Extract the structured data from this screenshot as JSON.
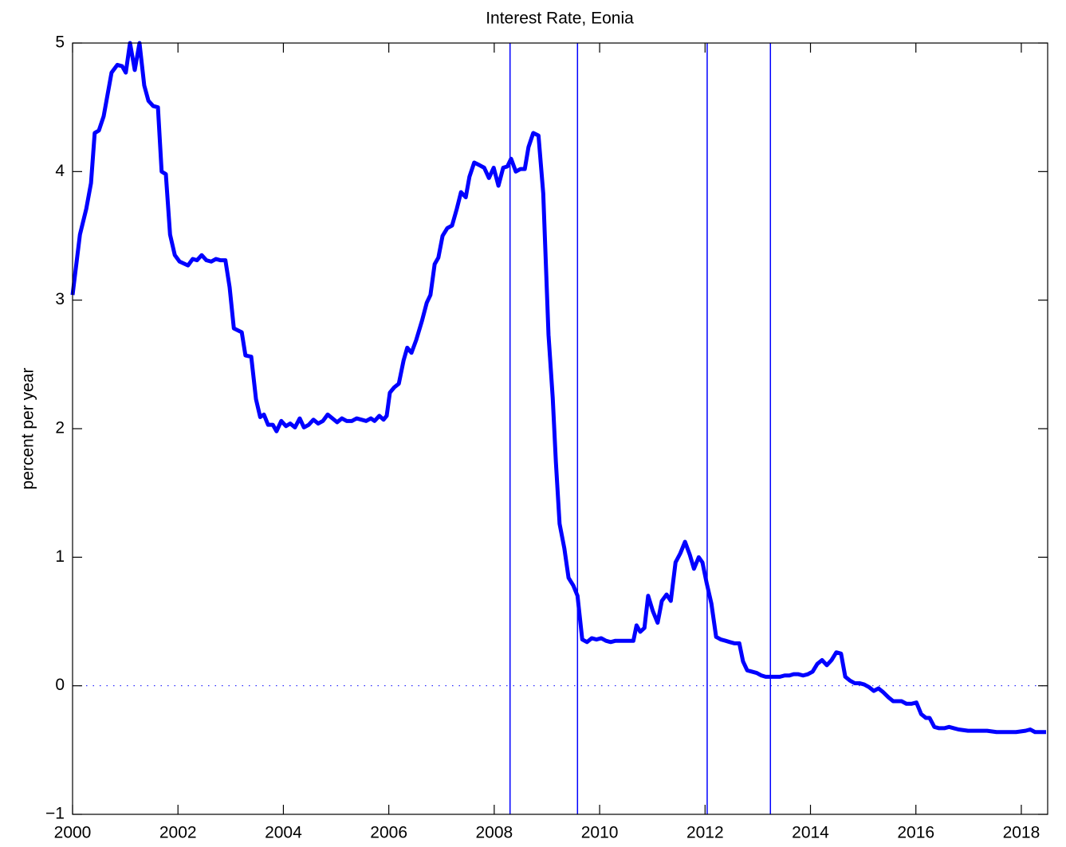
{
  "chart_data": {
    "type": "line",
    "title": "Interest Rate, Eonia",
    "y_label": "percent per year",
    "color": "#0000ff",
    "line_width": 5,
    "x": [
      2000.0,
      2000.14,
      2000.26,
      2000.35,
      2000.42,
      2000.5,
      2000.59,
      2000.74,
      2000.85,
      2000.94,
      2001.01,
      2001.09,
      2001.18,
      2001.27,
      2001.36,
      2001.44,
      2001.53,
      2001.62,
      2001.69,
      2001.77,
      2001.85,
      2001.94,
      2002.03,
      2002.19,
      2002.28,
      2002.36,
      2002.45,
      2002.54,
      2002.63,
      2002.72,
      2002.81,
      2002.9,
      2002.98,
      2003.06,
      2003.21,
      2003.28,
      2003.39,
      2003.48,
      2003.56,
      2003.63,
      2003.71,
      2003.8,
      2003.87,
      2003.96,
      2004.05,
      2004.13,
      2004.22,
      2004.31,
      2004.39,
      2004.48,
      2004.57,
      2004.66,
      2004.75,
      2004.84,
      2004.93,
      2005.02,
      2005.11,
      2005.2,
      2005.3,
      2005.39,
      2005.48,
      2005.57,
      2005.66,
      2005.73,
      2005.82,
      2005.9,
      2005.96,
      2006.02,
      2006.1,
      2006.19,
      2006.28,
      2006.35,
      2006.43,
      2006.52,
      2006.63,
      2006.72,
      2006.79,
      2006.87,
      2006.94,
      2007.02,
      2007.11,
      2007.2,
      2007.29,
      2007.37,
      2007.46,
      2007.53,
      2007.62,
      2007.72,
      2007.81,
      2007.9,
      2007.99,
      2008.08,
      2008.17,
      2008.25,
      2008.32,
      2008.41,
      2008.5,
      2008.58,
      2008.65,
      2008.74,
      2008.84,
      2008.93,
      2009.03,
      2009.11,
      2009.17,
      2009.24,
      2009.33,
      2009.41,
      2009.5,
      2009.58,
      2009.67,
      2009.76,
      2009.85,
      2009.94,
      2010.03,
      2010.12,
      2010.21,
      2010.3,
      2010.39,
      2010.48,
      2010.57,
      2010.64,
      2010.7,
      2010.77,
      2010.85,
      2010.92,
      2011.01,
      2011.1,
      2011.18,
      2011.27,
      2011.35,
      2011.44,
      2011.53,
      2011.62,
      2011.71,
      2011.79,
      2011.88,
      2011.95,
      2012.03,
      2012.12,
      2012.21,
      2012.3,
      2012.39,
      2012.47,
      2012.56,
      2012.65,
      2012.72,
      2012.8,
      2012.89,
      2012.98,
      2013.07,
      2013.15,
      2013.24,
      2013.33,
      2013.42,
      2013.51,
      2013.6,
      2013.68,
      2013.77,
      2013.86,
      2013.95,
      2014.04,
      2014.13,
      2014.22,
      2014.31,
      2014.4,
      2014.49,
      2014.58,
      2014.66,
      2014.75,
      2014.84,
      2014.93,
      2015.02,
      2015.11,
      2015.2,
      2015.29,
      2015.38,
      2015.48,
      2015.57,
      2015.66,
      2015.73,
      2015.82,
      2015.92,
      2016.01,
      2016.1,
      2016.19,
      2016.26,
      2016.35,
      2016.44,
      2016.54,
      2016.63,
      2016.72,
      2016.81,
      2016.99,
      2017.17,
      2017.35,
      2017.53,
      2017.72,
      2017.9,
      2018.08,
      2018.17,
      2018.26,
      2018.47
    ],
    "values": [
      3.04,
      3.51,
      3.71,
      3.91,
      4.3,
      4.32,
      4.43,
      4.77,
      4.83,
      4.82,
      4.77,
      5.0,
      4.79,
      5.0,
      4.67,
      4.55,
      4.51,
      4.5,
      4.0,
      3.98,
      3.51,
      3.35,
      3.3,
      3.27,
      3.32,
      3.31,
      3.35,
      3.31,
      3.3,
      3.32,
      3.31,
      3.31,
      3.1,
      2.78,
      2.75,
      2.57,
      2.56,
      2.23,
      2.09,
      2.11,
      2.03,
      2.03,
      1.98,
      2.06,
      2.02,
      2.04,
      2.01,
      2.08,
      2.01,
      2.03,
      2.07,
      2.04,
      2.06,
      2.11,
      2.08,
      2.05,
      2.08,
      2.06,
      2.06,
      2.08,
      2.07,
      2.06,
      2.08,
      2.06,
      2.1,
      2.07,
      2.1,
      2.28,
      2.32,
      2.35,
      2.53,
      2.63,
      2.59,
      2.69,
      2.84,
      2.98,
      3.04,
      3.28,
      3.33,
      3.5,
      3.56,
      3.58,
      3.71,
      3.84,
      3.8,
      3.96,
      4.07,
      4.05,
      4.03,
      3.95,
      4.03,
      3.89,
      4.03,
      4.04,
      4.1,
      4.0,
      4.02,
      4.02,
      4.19,
      4.3,
      4.28,
      3.83,
      2.73,
      2.24,
      1.74,
      1.26,
      1.07,
      0.84,
      0.78,
      0.7,
      0.36,
      0.34,
      0.37,
      0.36,
      0.37,
      0.35,
      0.34,
      0.35,
      0.35,
      0.35,
      0.35,
      0.35,
      0.47,
      0.42,
      0.45,
      0.7,
      0.58,
      0.49,
      0.66,
      0.71,
      0.66,
      0.96,
      1.03,
      1.12,
      1.02,
      0.91,
      1.0,
      0.96,
      0.8,
      0.64,
      0.38,
      0.36,
      0.35,
      0.34,
      0.33,
      0.33,
      0.19,
      0.12,
      0.11,
      0.1,
      0.08,
      0.07,
      0.07,
      0.07,
      0.07,
      0.08,
      0.08,
      0.09,
      0.09,
      0.08,
      0.09,
      0.11,
      0.17,
      0.2,
      0.16,
      0.2,
      0.26,
      0.25,
      0.07,
      0.04,
      0.02,
      0.02,
      0.01,
      -0.01,
      -0.04,
      -0.02,
      -0.05,
      -0.09,
      -0.12,
      -0.12,
      -0.12,
      -0.14,
      -0.14,
      -0.13,
      -0.22,
      -0.25,
      -0.25,
      -0.32,
      -0.33,
      -0.33,
      -0.32,
      -0.33,
      -0.34,
      -0.35,
      -0.35,
      -0.35,
      -0.36,
      -0.36,
      -0.36,
      -0.35,
      -0.34,
      -0.36,
      -0.36
    ],
    "vlines": [
      2008.3,
      2009.58,
      2012.04,
      2013.24
    ],
    "hline": 0,
    "xlim": [
      2000,
      2018.5
    ],
    "ylim": [
      -1,
      5
    ],
    "xticks": [
      2000,
      2002,
      2004,
      2006,
      2008,
      2010,
      2012,
      2014,
      2016,
      2018
    ],
    "yticks": [
      {
        "value": -1,
        "label": "−1"
      },
      0,
      1,
      2,
      3,
      4,
      5
    ],
    "grid": false
  }
}
